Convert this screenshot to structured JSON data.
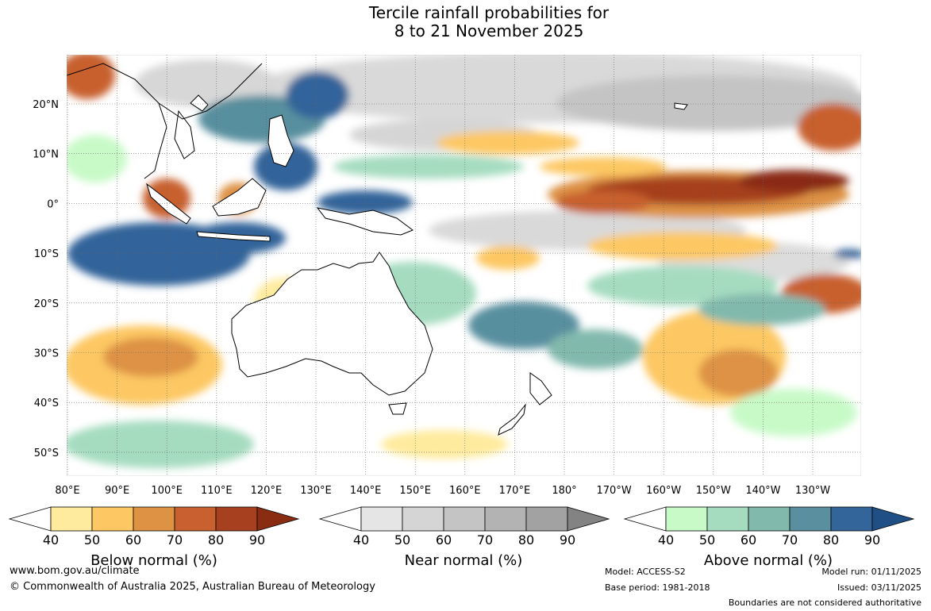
{
  "title": {
    "line1": "Tercile rainfall probabilities for",
    "line2": "8 to 21 November 2025"
  },
  "map": {
    "lat_labels": [
      "20°N",
      "10°N",
      "0°",
      "10°S",
      "20°S",
      "30°S",
      "40°S",
      "50°S"
    ],
    "lon_labels": [
      "80°E",
      "90°E",
      "100°E",
      "110°E",
      "120°E",
      "130°E",
      "140°E",
      "150°E",
      "160°E",
      "170°E",
      "180°",
      "170°W",
      "160°W",
      "150°W",
      "140°W",
      "130°W"
    ],
    "lon_range": [
      "80°E",
      "120°W"
    ],
    "lat_range": [
      "30°N",
      "55°S"
    ]
  },
  "legends": [
    {
      "id": "below",
      "label": "Below normal (%)",
      "ticks": [
        "40",
        "50",
        "60",
        "70",
        "80",
        "90"
      ],
      "colors": [
        "#ffffff",
        "#ffeb9e",
        "#fdc864",
        "#dd9244",
        "#c8602f",
        "#a6401f",
        "#8a2c12"
      ]
    },
    {
      "id": "near",
      "label": "Near normal (%)",
      "ticks": [
        "40",
        "50",
        "60",
        "70",
        "80",
        "90"
      ],
      "colors": [
        "#ffffff",
        "#e5e5e5",
        "#d5d5d5",
        "#c4c4c4",
        "#b3b3b3",
        "#a2a2a2",
        "#838383"
      ]
    },
    {
      "id": "above",
      "label": "Above normal (%)",
      "ticks": [
        "40",
        "50",
        "60",
        "70",
        "80",
        "90"
      ],
      "colors": [
        "#ffffff",
        "#c8fac8",
        "#a5dcc0",
        "#82b9ad",
        "#598f9f",
        "#33649a",
        "#1f4f85"
      ]
    }
  ],
  "footer": {
    "url": "www.bom.gov.au/climate",
    "copyright": "© Commonwealth of Australia 2025, Australian Bureau of Meteorology",
    "model": "Model: ACCESS-S2",
    "base_period": "Base period: 1981-2018",
    "model_run": "Model run: 01/11/2025",
    "issued": "Issued: 03/11/2025",
    "boundaries": "Boundaries are not considered authoritative"
  }
}
